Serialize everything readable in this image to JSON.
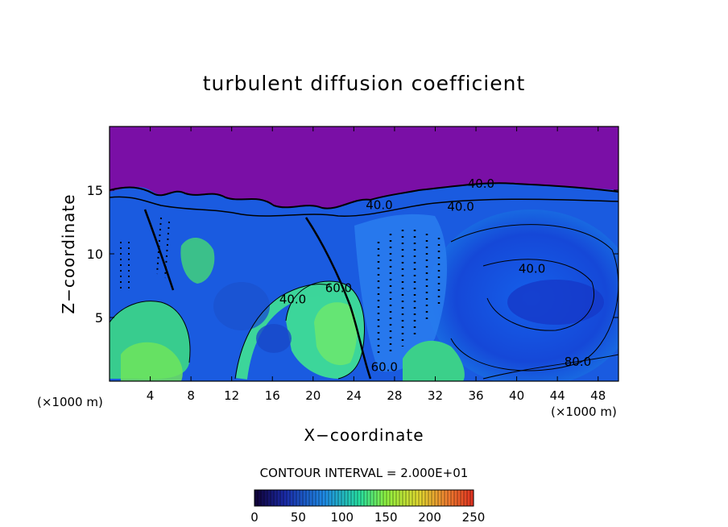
{
  "chart_data": {
    "type": "heatmap",
    "title": "turbulent diffusion coefficient",
    "xlabel": "X−coordinate",
    "ylabel": "Z−coordinate",
    "x_unit_label": "(×1000 m)",
    "y_unit_label": "(×1000 m)",
    "xlim": [
      0,
      50
    ],
    "ylim": [
      0,
      20
    ],
    "x_ticks": [
      4,
      8,
      12,
      16,
      20,
      24,
      28,
      32,
      36,
      40,
      44,
      48
    ],
    "y_ticks": [
      5,
      10,
      15
    ],
    "contour_interval_text": "CONTOUR INTERVAL = 2.000E+01",
    "contour_labels": [
      {
        "text": "40.0",
        "x": 36.5,
        "z": 15.2
      },
      {
        "text": "40.0",
        "x": 26.5,
        "z": 13.5
      },
      {
        "text": "40.0",
        "x": 34.5,
        "z": 13.4
      },
      {
        "text": "40.0",
        "x": 41.5,
        "z": 8.5
      },
      {
        "text": "40.0",
        "x": 18.0,
        "z": 6.1
      },
      {
        "text": "60.0",
        "x": 22.5,
        "z": 7.0
      },
      {
        "text": "60.0",
        "x": 27.0,
        "z": 0.8
      },
      {
        "text": "80.0",
        "x": 46.0,
        "z": 1.2
      }
    ],
    "colorbar": {
      "min": 0,
      "max": 250,
      "ticks": [
        0,
        50,
        100,
        150,
        200,
        250
      ],
      "colors": [
        "#100035",
        "#1a2ba8",
        "#1f8ce6",
        "#27e0a0",
        "#8ef040",
        "#e0d830",
        "#f08030",
        "#e03020"
      ]
    },
    "background_color": "#7a0fa6"
  }
}
